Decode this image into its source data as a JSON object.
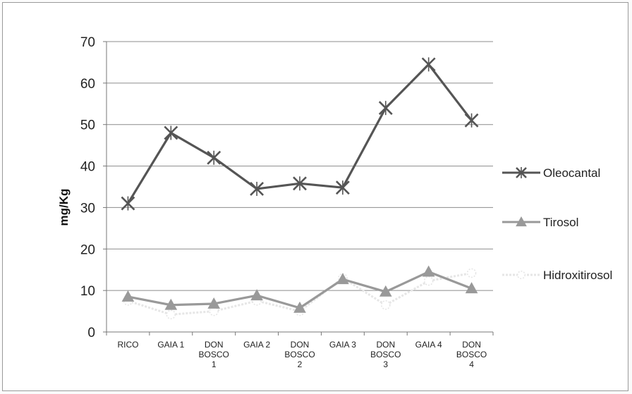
{
  "chart_data": {
    "type": "line",
    "title": "",
    "xlabel": "",
    "ylabel": "mg/Kg",
    "ylim": [
      0,
      70
    ],
    "yticks": [
      0,
      10,
      20,
      30,
      40,
      50,
      60,
      70
    ],
    "grid": true,
    "legend_position": "right",
    "categories": [
      [
        "RICO"
      ],
      [
        "GAIA 1"
      ],
      [
        "DON",
        "BOSCO",
        "1"
      ],
      [
        "GAIA 2"
      ],
      [
        "DON",
        "BOSCO",
        "2"
      ],
      [
        "GAIA 3"
      ],
      [
        "DON",
        "BOSCO",
        "3"
      ],
      [
        "GAIA 4"
      ],
      [
        "DON",
        "BOSCO",
        "4"
      ]
    ],
    "series": [
      {
        "name": "Oleocantal",
        "values": [
          31,
          48,
          42,
          34.5,
          35.8,
          34.8,
          54,
          64.5,
          51
        ],
        "color": "#555555",
        "marker": "star"
      },
      {
        "name": "Tirosol",
        "values": [
          8.5,
          6.5,
          6.8,
          8.8,
          5.8,
          12.7,
          9.7,
          14.5,
          10.5
        ],
        "color": "#999999",
        "marker": "triangle"
      },
      {
        "name": "Hidroxitirosol",
        "values": [
          7.5,
          4.2,
          5.0,
          7.5,
          5.0,
          13.0,
          6.5,
          12.3,
          14.2
        ],
        "color": "#e6e6e6",
        "marker": "circle"
      }
    ]
  }
}
